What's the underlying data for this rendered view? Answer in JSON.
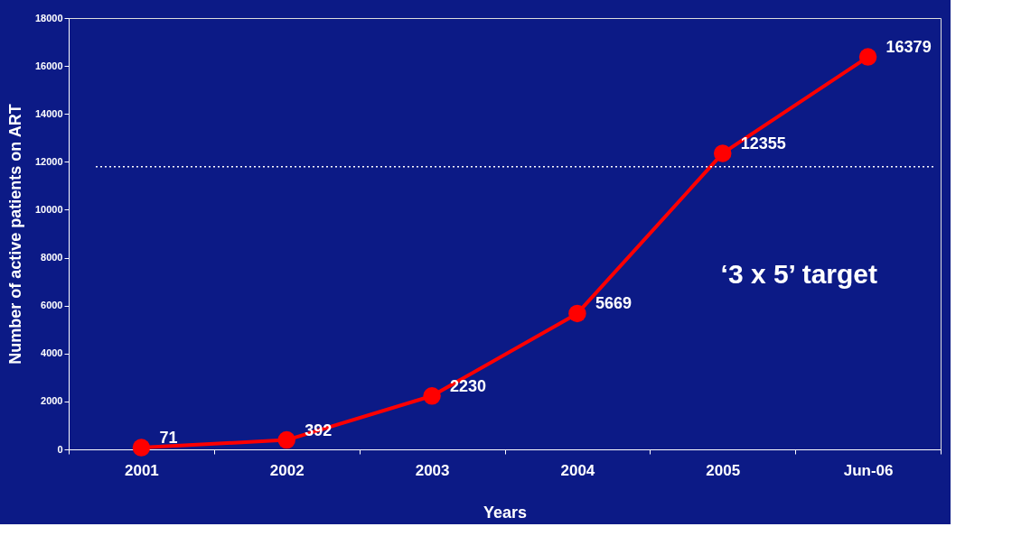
{
  "chart_data": {
    "type": "line",
    "xlabel": "Years",
    "ylabel": "Number of active patients on ART",
    "categories": [
      "2001",
      "2002",
      "2003",
      "2004",
      "2005",
      "Jun-06"
    ],
    "series": [
      {
        "color": "#ff0000",
        "values": [
          71,
          392,
          2230,
          5669,
          12355,
          16379
        ]
      }
    ],
    "ylim": [
      0,
      18000
    ],
    "yticks": [
      0,
      2000,
      4000,
      6000,
      8000,
      10000,
      12000,
      14000,
      16000,
      18000
    ],
    "data_labels": true,
    "marker": "circle",
    "line_style": "solid",
    "grid": false,
    "ref_lines": [
      {
        "axis": "y",
        "value": 11800,
        "label": "‘3 x 5’ target",
        "color": "#ffffff",
        "line_style": "dotted"
      }
    ]
  }
}
